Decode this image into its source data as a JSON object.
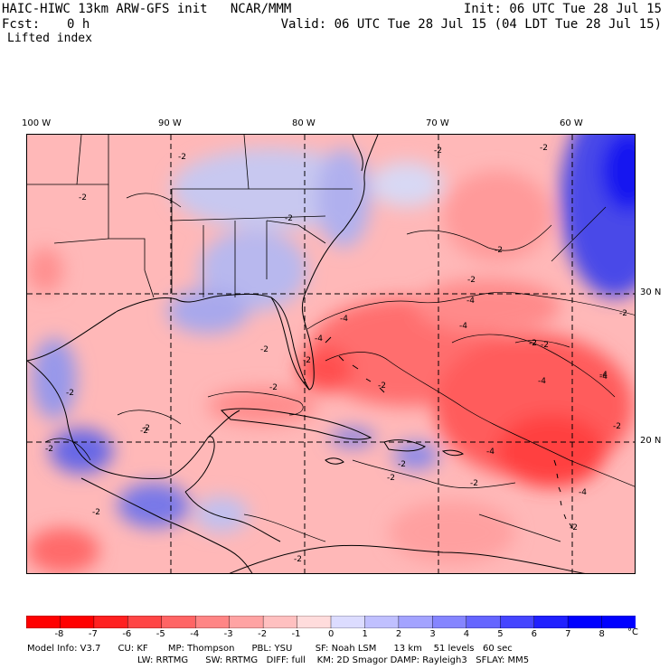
{
  "header": {
    "title": "HAIC-HIWC 13km ARW-GFS init   NCAR/MMM",
    "init": "Init: 06 UTC Tue 28 Jul 15",
    "fcst_label": "Fcst:",
    "fcst_value": "0 h",
    "valid": "Valid: 06 UTC Tue 28 Jul 15 (04 LDT Tue 28 Jul 15)",
    "field": "Lifted index"
  },
  "map": {
    "lon_labels": [
      "100 W",
      "90 W",
      "80 W",
      "70 W",
      "60 W"
    ],
    "lat_labels": [
      "30 N",
      "20 N"
    ],
    "contour_labels": [
      "-2",
      "-2",
      "-2",
      "-2",
      "-2",
      "-2",
      "-2",
      "-2",
      "-2",
      "-4",
      "-4",
      "-4",
      "-2",
      "-4",
      "-4",
      "-2",
      "-2",
      "-2",
      "-4",
      "-2",
      "-2",
      "-2",
      "-2",
      "-4",
      "-4",
      "-2",
      "-2",
      "-2",
      "-2",
      "-2",
      "-2",
      "-2",
      "-4",
      "-2",
      "-2"
    ]
  },
  "colorbar": {
    "ticks": [
      "-8",
      "-7",
      "-6",
      "-5",
      "-4",
      "-3",
      "-2",
      "-1",
      "0",
      "1",
      "2",
      "3",
      "4",
      "5",
      "6",
      "7",
      "8"
    ],
    "unit": "°C",
    "colors": [
      "#ff0000",
      "#ff2020",
      "#ff4545",
      "#ff6565",
      "#ff8585",
      "#ffa3a3",
      "#ffc0c0",
      "#ffdcdc",
      "#ffffff",
      "#dcdcff",
      "#c0c0ff",
      "#a3a3ff",
      "#8585ff",
      "#6565ff",
      "#4545ff",
      "#2020ff",
      "#0000ff"
    ]
  },
  "footer": {
    "line1": "Model Info: V3.7      CU: KF       MP: Thompson      PBL: YSU        SF: Noah LSM      13 km    51 levels   60 sec",
    "line2": "LW: RRTMG      SW: RRTMG   DIFF: full    KM: 2D Smagor DAMP: Rayleigh3   SFLAY: MM5"
  }
}
